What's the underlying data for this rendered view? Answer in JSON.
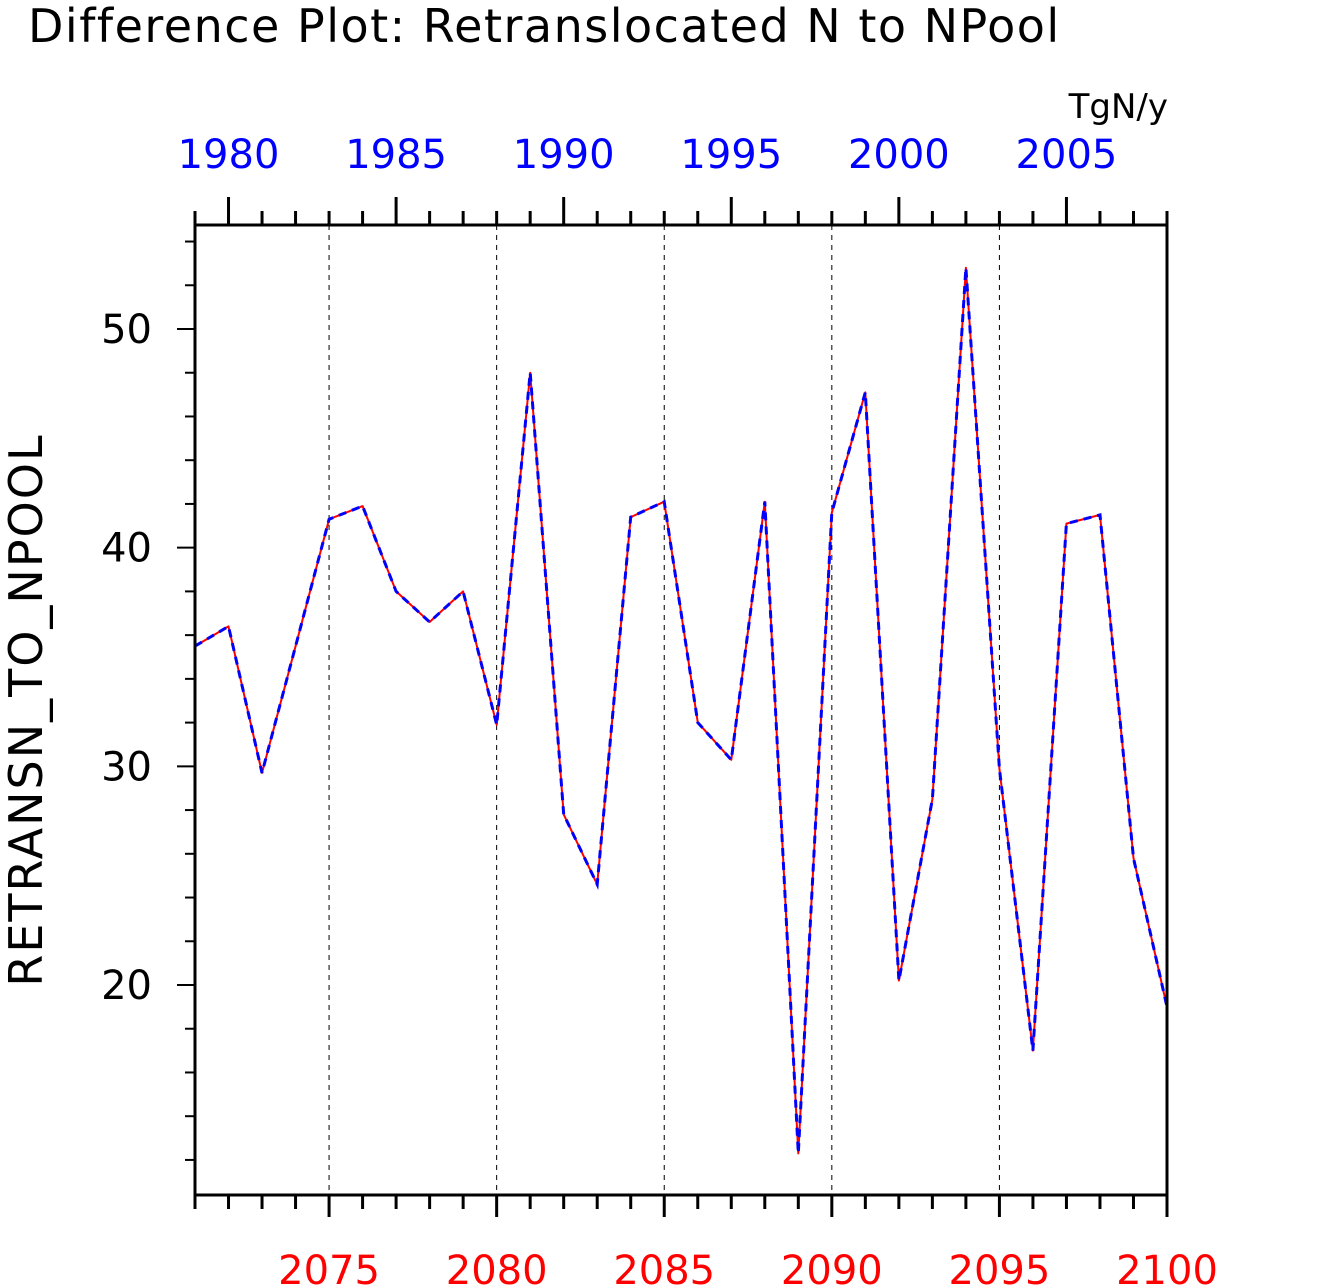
{
  "chart_data": {
    "type": "line",
    "title": "Difference Plot: Retranslocated N to NPool",
    "units": "TgN/y",
    "ylabel": "RETRANSN_TO_NPOOL",
    "ylim": [
      10,
      55
    ],
    "y_ticks": [
      "20",
      "30",
      "40",
      "50"
    ],
    "grid": "vertical dashed lines at bottom-axis major ticks",
    "colors": {
      "bottom_axis": "#ff0000",
      "top_axis": "#0000ff"
    },
    "x_bottom": {
      "range": [
        2071,
        2100
      ],
      "tick_labels": [
        "2075",
        "2080",
        "2085",
        "2090",
        "2095",
        "2100"
      ]
    },
    "x_top": {
      "range": [
        1979,
        2008
      ],
      "tick_labels": [
        "1980",
        "1985",
        "1990",
        "1995",
        "2000",
        "2005"
      ]
    },
    "series": [
      {
        "color": "#ff0000",
        "style": "solid",
        "x": [
          2071,
          2072,
          2073,
          2074,
          2075,
          2076,
          2077,
          2078,
          2079,
          2080,
          2081,
          2082,
          2083,
          2084,
          2085,
          2086,
          2087,
          2088,
          2089,
          2090,
          2091,
          2092,
          2093,
          2094,
          2095,
          2096,
          2097,
          2098,
          2099,
          2100
        ],
        "values": [
          35.5,
          36.4,
          29.7,
          35.5,
          41.3,
          41.9,
          38.0,
          36.6,
          38.0,
          31.9,
          48.0,
          27.8,
          24.6,
          41.4,
          42.1,
          32.0,
          30.3,
          42.1,
          12.3,
          41.6,
          47.1,
          20.2,
          28.5,
          52.8,
          29.9,
          17.0,
          41.1,
          41.5,
          25.8,
          19.0
        ]
      },
      {
        "color": "#0000ff",
        "style": "dashed",
        "x": [
          1979,
          1980,
          1981,
          1982,
          1983,
          1984,
          1985,
          1986,
          1987,
          1988,
          1989,
          1990,
          1991,
          1992,
          1993,
          1994,
          1995,
          1996,
          1997,
          1998,
          1999,
          2000,
          2001,
          2002,
          2003,
          2004,
          2005,
          2006,
          2007,
          2008
        ],
        "values": [
          35.5,
          36.4,
          29.7,
          35.5,
          41.3,
          41.9,
          38.0,
          36.6,
          38.0,
          31.9,
          48.0,
          27.8,
          24.6,
          41.4,
          42.1,
          32.0,
          30.3,
          42.1,
          12.3,
          41.6,
          47.1,
          20.2,
          28.5,
          52.8,
          29.9,
          17.0,
          41.1,
          41.5,
          25.8,
          19.0
        ]
      }
    ]
  }
}
